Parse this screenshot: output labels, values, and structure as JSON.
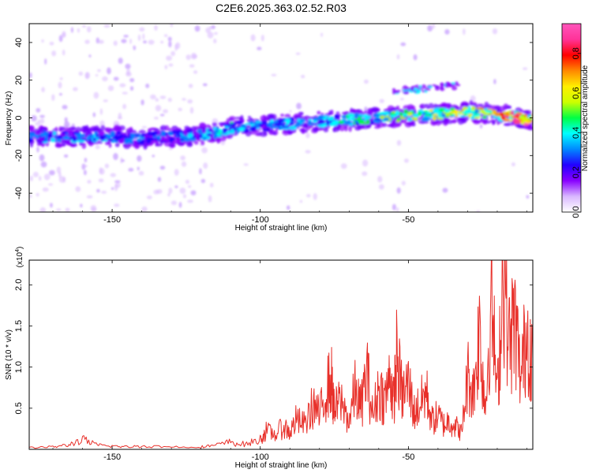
{
  "title": "C2E6.2025.363.02.52.R03",
  "chart_data": [
    {
      "type": "heatmap",
      "name": "spectrogram",
      "xlabel": "Height of straight line (km)",
      "ylabel": "Frequency (Hz)",
      "xlim": [
        -178,
        -8
      ],
      "ylim": [
        -50,
        50
      ],
      "x_ticks": [
        -150,
        -100,
        -50
      ],
      "x_tick_labels": [
        "-150",
        "-100",
        "-50"
      ],
      "y_ticks": [
        -40,
        -20,
        0,
        20,
        40
      ],
      "y_tick_labels": [
        "-40",
        "-20",
        "0",
        "20",
        "40"
      ],
      "ridge": {
        "description": "main spectral ridge center frequency vs height",
        "x": [
          -178,
          -160,
          -150,
          -140,
          -130,
          -120,
          -115,
          -110,
          -100,
          -90,
          -80,
          -70,
          -60,
          -50,
          -40,
          -30,
          -20,
          -10
        ],
        "y": [
          -10,
          -10,
          -10,
          -11,
          -10,
          -9,
          -8,
          -5,
          -4,
          -3,
          -2,
          -1,
          0,
          1,
          2,
          3,
          2,
          -1
        ],
        "amplitude": [
          0.35,
          0.4,
          0.4,
          0.3,
          0.35,
          0.4,
          0.5,
          0.45,
          0.4,
          0.45,
          0.45,
          0.5,
          0.55,
          0.6,
          0.65,
          0.75,
          0.85,
          0.95
        ]
      },
      "colorbar": {
        "label": "Normalized spectral amplitude",
        "range": [
          0,
          0.95
        ],
        "ticks": [
          0.0,
          0.2,
          0.4,
          0.6,
          0.8
        ],
        "tick_labels": [
          "0.0",
          "0.2",
          "0.4",
          "0.6",
          "0.8"
        ],
        "colors": [
          "#ffffff",
          "#d9b8ff",
          "#8800ff",
          "#2200ff",
          "#0088ff",
          "#00ffff",
          "#00ff44",
          "#ccff00",
          "#ffee00",
          "#ff8800",
          "#ff0000",
          "#ff3399",
          "#ff55bb"
        ]
      }
    },
    {
      "type": "line",
      "name": "snr",
      "xlabel": "Height of straight line (km)",
      "ylabel": "SNR (10 * v/v)",
      "y_scale_label": "(x10",
      "y_scale_exp": "4",
      "y_scale_close": ")",
      "xlim": [
        -178,
        -8
      ],
      "ylim": [
        0,
        2.3
      ],
      "x_ticks": [
        -150,
        -100,
        -50
      ],
      "x_tick_labels": [
        "-150",
        "-100",
        "-50"
      ],
      "y_ticks": [
        0.5,
        1.0,
        1.5,
        2.0
      ],
      "y_tick_labels": [
        "0.5",
        "1.0",
        "1.5",
        "2.0"
      ],
      "color": "#e8302a",
      "x": [
        -178,
        -170,
        -165,
        -160,
        -155,
        -150,
        -145,
        -140,
        -130,
        -120,
        -115,
        -110,
        -105,
        -100,
        -98,
        -95,
        -92,
        -90,
        -88,
        -85,
        -82,
        -80,
        -78,
        -76,
        -75,
        -73,
        -70,
        -68,
        -66,
        -64,
        -62,
        -60,
        -58,
        -56,
        -55,
        -54,
        -52,
        -50,
        -48,
        -46,
        -44,
        -42,
        -40,
        -38,
        -36,
        -34,
        -32,
        -30,
        -28,
        -26,
        -24,
        -22,
        -20,
        -18,
        -16,
        -14,
        -12,
        -10,
        -8
      ],
      "y": [
        0.02,
        0.03,
        0.05,
        0.12,
        0.05,
        0.04,
        0.03,
        0.04,
        0.03,
        0.03,
        0.05,
        0.09,
        0.06,
        0.12,
        0.22,
        0.18,
        0.28,
        0.2,
        0.35,
        0.3,
        0.55,
        0.4,
        0.7,
        0.85,
        0.45,
        0.6,
        0.35,
        0.72,
        0.5,
        0.95,
        0.4,
        0.75,
        0.6,
        0.9,
        0.55,
        1.12,
        0.65,
        0.8,
        0.45,
        0.55,
        0.7,
        0.35,
        0.4,
        0.3,
        0.35,
        0.28,
        0.2,
        0.9,
        0.7,
        1.45,
        0.5,
        1.9,
        0.6,
        2.28,
        1.3,
        1.55,
        0.85,
        1.48,
        1.1
      ]
    }
  ]
}
